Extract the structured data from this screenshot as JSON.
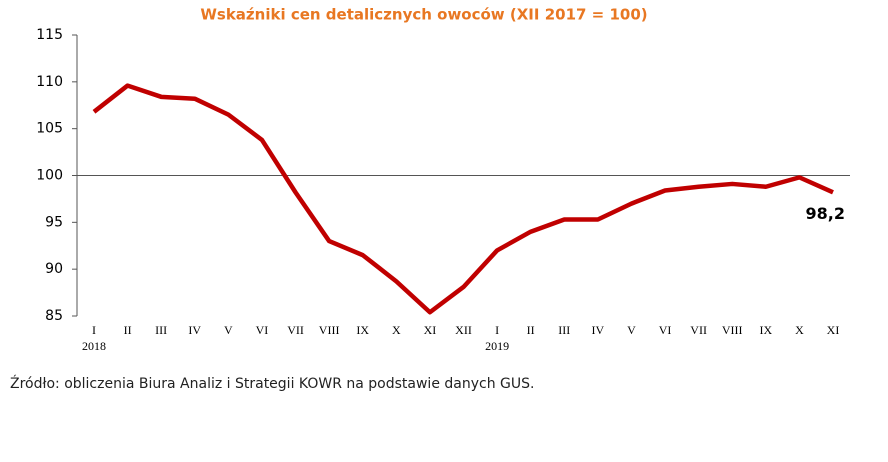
{
  "chart_data": {
    "type": "line",
    "title": "Wskaźniki cen detalicznych owoców (XII 2017 = 100)",
    "categories": [
      "I",
      "II",
      "III",
      "IV",
      "V",
      "VI",
      "VII",
      "VIII",
      "IX",
      "X",
      "XI",
      "XII",
      "I",
      "II",
      "III",
      "IV",
      "V",
      "VI",
      "VII",
      "VIII",
      "IX",
      "X",
      "XI"
    ],
    "years": [
      "2018",
      null,
      null,
      null,
      null,
      null,
      null,
      null,
      null,
      null,
      null,
      null,
      "2019",
      null,
      null,
      null,
      null,
      null,
      null,
      null,
      null,
      null,
      null
    ],
    "series": [
      {
        "color": "#c00000",
        "values": [
          106.8,
          109.6,
          108.4,
          108.2,
          106.5,
          103.8,
          98.2,
          93.0,
          91.5,
          88.7,
          85.4,
          88.1,
          92.0,
          94.0,
          95.3,
          95.3,
          97.0,
          98.4,
          98.8,
          99.1,
          98.8,
          99.8,
          98.2
        ],
        "value_labels": [
          null,
          null,
          null,
          null,
          null,
          null,
          null,
          null,
          null,
          null,
          null,
          null,
          null,
          null,
          null,
          null,
          null,
          null,
          null,
          null,
          null,
          null,
          "98,2"
        ]
      }
    ],
    "ylim": [
      85,
      115
    ],
    "yticks": [
      85,
      90,
      95,
      100,
      105,
      110,
      115
    ],
    "x_axis_crossing": 100,
    "source": "Źródło: obliczenia Biura Analiz i Strategii KOWR na podstawie danych GUS."
  }
}
